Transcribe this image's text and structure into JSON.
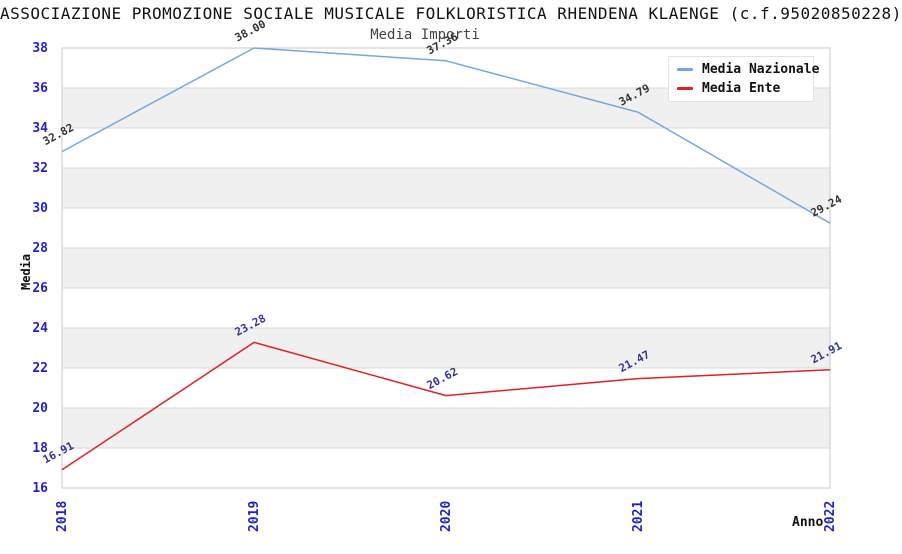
{
  "header": {
    "title": "ASSOCIAZIONE PROMOZIONE SOCIALE MUSICALE FOLKLORISTICA RHENDENA KLAENGE (c.f.95020850228)",
    "subtitle": "Media Importi"
  },
  "chart_data": {
    "type": "line",
    "title": "Media Importi",
    "xlabel": "Anno",
    "ylabel": "Media",
    "x": [
      "2018",
      "2019",
      "2020",
      "2021",
      "2022"
    ],
    "ylim": [
      16,
      38
    ],
    "ytick_step": 2,
    "grid": "horizontal-lines-with-alternating-bands",
    "legend_position": "top-right",
    "series": [
      {
        "name": "Media Nazionale",
        "color": "#74a9e0",
        "label_color": "#333333",
        "values": [
          32.82,
          38.0,
          37.36,
          34.79,
          29.24
        ]
      },
      {
        "name": "Media Ente",
        "color": "#e32020",
        "label_color": "#333399",
        "values": [
          16.91,
          23.28,
          20.62,
          21.47,
          21.91
        ]
      }
    ]
  },
  "colors": {
    "tick_label": "#2222cc",
    "axis_title": "#111111",
    "grid_line": "#d9d9d9",
    "band_fill": "#f0f0f0",
    "spine": "#c9c9c9",
    "title": "#111111",
    "subtitle": "#444444"
  }
}
